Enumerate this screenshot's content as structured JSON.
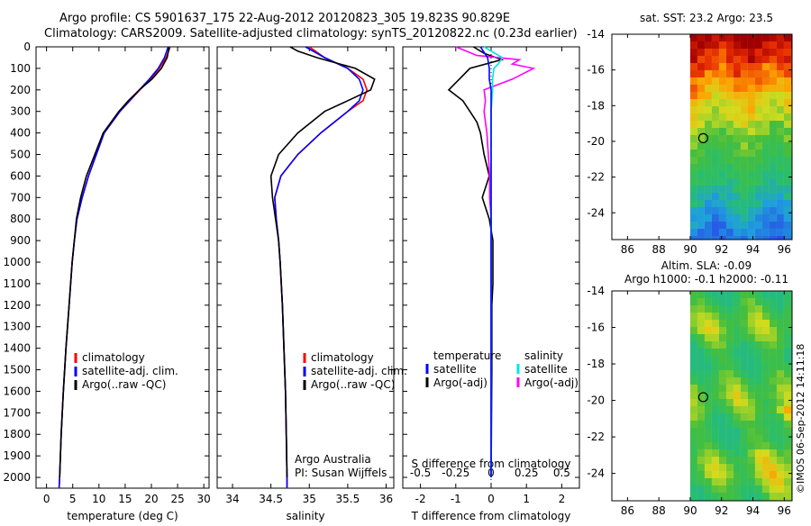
{
  "header": {
    "line1": "Argo profile: CS 5901637_175 22-Aug-2012 20120823_305 19.823S 90.829E",
    "line2": "Climatology: CARS2009. Satellite-adjusted climatology: synTS_20120822.nc (0.23d earlier)"
  },
  "colors": {
    "climatology": "#ff0000",
    "satellite": "#0000ff",
    "argo": "#000000",
    "s_satellite": "#00e5e5",
    "s_argo": "#ff00ff"
  },
  "side_label": "©IMOS 06-Sep-2012 14:11:18",
  "chart_data": [
    {
      "type": "line",
      "id": "temperature",
      "xlabel": "temperature (deg C)",
      "ylabel": "",
      "xlim": [
        -2,
        31
      ],
      "ylim": [
        2050,
        0
      ],
      "xticks": [
        0,
        5,
        10,
        15,
        20,
        25,
        30
      ],
      "xtick_labels": [
        "0",
        "5",
        "10",
        "15",
        "20",
        "25",
        "30"
      ],
      "yticks": [
        0,
        100,
        200,
        300,
        400,
        500,
        600,
        700,
        800,
        900,
        1000,
        1100,
        1200,
        1300,
        1400,
        1500,
        1600,
        1700,
        1800,
        1900,
        2000
      ],
      "ytick_labels": [
        "0",
        "100",
        "200",
        "300",
        "400",
        "500",
        "600",
        "700",
        "800",
        "900",
        "1000",
        "1100",
        "1200",
        "1300",
        "1400",
        "1500",
        "1600",
        "1700",
        "1800",
        "1900",
        "2000"
      ],
      "legend": [
        "climatology",
        "satellite-adj. clim.",
        "Argo(..raw -QC)"
      ],
      "series": [
        {
          "name": "climatology",
          "depth": [
            0,
            50,
            100,
            150,
            200,
            300,
            400,
            500,
            600,
            700,
            800,
            900,
            1000,
            1200,
            1400,
            1600,
            1800,
            2000,
            2050
          ],
          "values": [
            23.6,
            22.8,
            21.5,
            19.8,
            17.8,
            14.0,
            11.0,
            9.5,
            8.0,
            6.8,
            5.8,
            5.3,
            4.9,
            4.3,
            3.7,
            3.2,
            2.8,
            2.5,
            2.4
          ]
        },
        {
          "name": "satellite-adj. clim.",
          "depth": [
            0,
            50,
            100,
            150,
            200,
            300,
            400,
            500,
            600,
            700,
            800,
            900,
            1000,
            1200,
            1400,
            1600,
            1800,
            2000,
            2050
          ],
          "values": [
            23.2,
            22.5,
            21.3,
            19.6,
            17.7,
            14.0,
            11.0,
            9.5,
            8.0,
            6.8,
            5.8,
            5.3,
            4.9,
            4.3,
            3.7,
            3.2,
            2.8,
            2.5,
            2.4
          ]
        },
        {
          "name": "Argo(..raw -QC)",
          "depth": [
            0,
            50,
            100,
            150,
            200,
            250,
            300,
            400,
            500,
            600,
            700,
            800,
            900,
            1000,
            1200,
            1400,
            1600,
            1800,
            2000
          ],
          "values": [
            23.4,
            23.0,
            21.9,
            20.1,
            17.7,
            15.6,
            13.8,
            10.8,
            9.2,
            7.6,
            6.5,
            5.7,
            5.3,
            4.9,
            4.3,
            3.7,
            3.2,
            2.8,
            2.5
          ]
        }
      ]
    },
    {
      "type": "line",
      "id": "salinity",
      "xlabel": "salinity",
      "ylabel": "",
      "xlim": [
        33.8,
        36.1
      ],
      "ylim": [
        2050,
        0
      ],
      "xticks": [
        34,
        34.5,
        35,
        35.5,
        36
      ],
      "xtick_labels": [
        "34",
        "34.5",
        "35",
        "35.5",
        "36"
      ],
      "legend": [
        "climatology",
        "satellite-adj. clim.",
        "Argo(..raw -QC)"
      ],
      "annotation": [
        "Argo Australia",
        "PI: Susan Wijffels"
      ],
      "series": [
        {
          "name": "climatology",
          "depth": [
            0,
            50,
            100,
            150,
            200,
            250,
            300,
            400,
            500,
            600,
            700,
            800,
            900,
            1000,
            1200,
            1400,
            1600,
            1800,
            2000,
            2050
          ],
          "values": [
            35.0,
            35.2,
            35.5,
            35.7,
            35.75,
            35.7,
            35.5,
            35.15,
            34.85,
            34.63,
            34.55,
            34.57,
            34.6,
            34.62,
            34.65,
            34.67,
            34.69,
            34.7,
            34.71,
            34.71
          ]
        },
        {
          "name": "satellite-adj. clim.",
          "depth": [
            0,
            50,
            100,
            150,
            200,
            250,
            300,
            400,
            500,
            600,
            700,
            800,
            900,
            1000,
            1200,
            1400,
            1600,
            1800,
            2000,
            2050
          ],
          "values": [
            34.95,
            35.2,
            35.5,
            35.65,
            35.7,
            35.65,
            35.5,
            35.15,
            34.85,
            34.63,
            34.55,
            34.57,
            34.6,
            34.62,
            34.65,
            34.67,
            34.69,
            34.7,
            34.71,
            34.71
          ]
        },
        {
          "name": "Argo(..raw -QC)",
          "depth": [
            0,
            20,
            50,
            80,
            100,
            150,
            200,
            250,
            300,
            400,
            500,
            600,
            700,
            800,
            900,
            1000,
            1200,
            1400,
            1600,
            1800,
            2000
          ],
          "values": [
            34.75,
            34.85,
            35.1,
            35.4,
            35.6,
            35.85,
            35.8,
            35.5,
            35.2,
            34.85,
            34.6,
            34.5,
            34.52,
            34.56,
            34.6,
            34.62,
            34.65,
            34.67,
            34.69,
            34.7,
            34.71
          ]
        }
      ]
    },
    {
      "type": "line",
      "id": "differences",
      "xlabel": "T difference from climatology",
      "top_label": "S difference from climatology",
      "xlim": [
        -2.5,
        2.5
      ],
      "ylim": [
        2050,
        0
      ],
      "xticks": [
        -2,
        -1,
        0,
        1,
        2
      ],
      "xtick_labels": [
        "-2",
        "-1",
        "0",
        "1",
        "2"
      ],
      "top_ticks": [
        -0.5,
        -0.25,
        0,
        0.25,
        0.5
      ],
      "top_tick_labels": [
        "-0.5",
        "-0.25",
        "0",
        "0.25",
        "0.5"
      ],
      "legend_temperature": {
        "title": "temperature",
        "items": [
          "satellite",
          "Argo(-adj)"
        ]
      },
      "legend_salinity": {
        "title": "salinity",
        "items": [
          "satellite",
          "Argo(-adj)"
        ]
      },
      "series": [
        {
          "name": "T satellite",
          "depth": [
            0,
            50,
            100,
            150,
            200,
            300,
            500,
            800,
            1000,
            1500,
            2000
          ],
          "values": [
            -0.3,
            -0.1,
            -0.05,
            -0.05,
            0,
            0,
            0,
            0,
            0,
            0,
            0
          ]
        },
        {
          "name": "T Argo(-adj)",
          "depth": [
            0,
            30,
            60,
            100,
            150,
            200,
            250,
            300,
            350,
            400,
            450,
            500,
            600,
            700,
            750,
            800,
            900,
            1000,
            1100,
            1200,
            1500,
            2000
          ],
          "values": [
            -0.5,
            -0.2,
            0.3,
            -0.6,
            -0.9,
            -1.2,
            -0.8,
            -0.6,
            -0.4,
            -0.3,
            -0.25,
            -0.2,
            -0.05,
            -0.25,
            -0.15,
            -0.05,
            0.05,
            0.05,
            0.05,
            0.02,
            0.02,
            0
          ]
        },
        {
          "name": "S satellite",
          "depth": [
            0,
            50,
            80,
            100,
            150,
            200,
            300,
            500,
            800,
            1000,
            1500,
            2000
          ],
          "values": [
            -0.05,
            0.08,
            0.05,
            0.02,
            0.01,
            0.01,
            0,
            0,
            0,
            0,
            0,
            0
          ]
        },
        {
          "name": "S Argo(-adj)",
          "depth": [
            0,
            40,
            60,
            80,
            100,
            150,
            200,
            250,
            300,
            400,
            500,
            600,
            700,
            800,
            900,
            1000,
            1100,
            1200,
            1500,
            2000
          ],
          "values": [
            -0.25,
            -0.1,
            0.2,
            0.15,
            0.3,
            0.15,
            -0.05,
            -0.04,
            -0.05,
            -0.03,
            -0.02,
            -0.01,
            -0.01,
            0,
            0,
            0,
            0,
            0,
            0,
            0
          ]
        }
      ]
    },
    {
      "type": "heatmap",
      "id": "sst-map",
      "title": "sat. SST: 23.2 Argo: 23.5",
      "xlim": [
        85,
        96.5
      ],
      "ylim": [
        -25.5,
        -14
      ],
      "xticks": [
        86,
        88,
        90,
        92,
        94,
        96
      ],
      "xtick_labels": [
        "86",
        "88",
        "90",
        "92",
        "94",
        "96"
      ],
      "yticks": [
        -14,
        -16,
        -18,
        -20,
        -22,
        -24
      ],
      "ytick_labels": [
        "-14",
        "-16",
        "-18",
        "-20",
        "-22",
        "-24"
      ],
      "data_extent_x": [
        90,
        96.5
      ],
      "marker": {
        "lon": 90.83,
        "lat": -19.82
      }
    },
    {
      "type": "heatmap",
      "id": "sla-map",
      "title": [
        "Altim. SLA: -0.09",
        "Argo h1000: -0.1 h2000: -0.11"
      ],
      "xlim": [
        85,
        96.5
      ],
      "ylim": [
        -25.5,
        -14
      ],
      "xticks": [
        86,
        88,
        90,
        92,
        94,
        96
      ],
      "xtick_labels": [
        "86",
        "88",
        "90",
        "92",
        "94",
        "96"
      ],
      "yticks": [
        -14,
        -16,
        -18,
        -20,
        -22,
        -24
      ],
      "ytick_labels": [
        "-14",
        "-16",
        "-18",
        "-20",
        "-22",
        "-24"
      ],
      "data_extent_x": [
        90,
        96.5
      ],
      "marker": {
        "lon": 90.83,
        "lat": -19.82
      }
    }
  ]
}
